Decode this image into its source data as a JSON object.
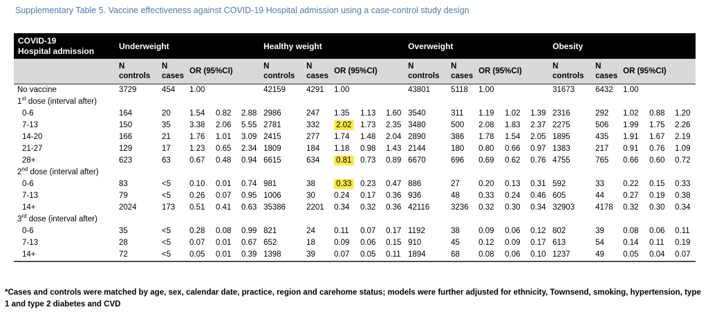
{
  "title": "Supplementary Table 5. Vaccine effectiveness against COVID-19 Hospital admission using a case-control study design",
  "colors": {
    "title_text": "#4f7cad",
    "header_bg": "#000000",
    "header_text": "#ffffff",
    "subheader_bg": "#d9d9d9",
    "highlight": "#ffe843"
  },
  "table": {
    "corner": {
      "line1": "COVID-19",
      "line2": "Hospital admission"
    },
    "groups": [
      "Underweight",
      "Healthy weight",
      "Overweight",
      "Obesity"
    ],
    "sub": {
      "n": "N",
      "controls": "controls",
      "cases": "cases",
      "or": "OR (95%CI)"
    },
    "rows": [
      {
        "label": "No vaccine",
        "indent": false,
        "cells": [
          [
            "3729",
            "454",
            "1.00",
            "",
            ""
          ],
          [
            "42159",
            "4291",
            "1.00",
            "",
            ""
          ],
          [
            "43801",
            "5118",
            "1.00",
            "",
            ""
          ],
          [
            "31673",
            "6432",
            "1.00",
            "",
            ""
          ]
        ]
      },
      {
        "section": true,
        "label": "1",
        "sup": "st",
        "rest": " dose (interval after)"
      },
      {
        "label": "0-6",
        "indent": true,
        "cells": [
          [
            "164",
            "20",
            "1.54",
            "0.82",
            "2.88"
          ],
          [
            "2986",
            "247",
            "1.35",
            "1.13",
            "1.60"
          ],
          [
            "3540",
            "311",
            "1.19",
            "1.02",
            "1.39"
          ],
          [
            "2316",
            "292",
            "1.02",
            "0.88",
            "1.20"
          ]
        ]
      },
      {
        "label": "7-13",
        "indent": true,
        "hl": [
          [
            1,
            2
          ]
        ],
        "cells": [
          [
            "150",
            "35",
            "3.38",
            "2.06",
            "5.55"
          ],
          [
            "2781",
            "332",
            "2.02",
            "1.73",
            "2.35"
          ],
          [
            "3480",
            "500",
            "2.08",
            "1.83",
            "2.37"
          ],
          [
            "2275",
            "506",
            "1.99",
            "1.75",
            "2.26"
          ]
        ]
      },
      {
        "label": "14-20",
        "indent": true,
        "cells": [
          [
            "166",
            "21",
            "1.76",
            "1.01",
            "3.09"
          ],
          [
            "2415",
            "277",
            "1.74",
            "1.48",
            "2.04"
          ],
          [
            "2890",
            "386",
            "1.78",
            "1.54",
            "2.05"
          ],
          [
            "1895",
            "435",
            "1.91",
            "1.67",
            "2.19"
          ]
        ]
      },
      {
        "label": "21-27",
        "indent": true,
        "cells": [
          [
            "129",
            "17",
            "1.23",
            "0.65",
            "2.34"
          ],
          [
            "1809",
            "184",
            "1.18",
            "0.98",
            "1.43"
          ],
          [
            "2144",
            "180",
            "0.80",
            "0.66",
            "0.97"
          ],
          [
            "1383",
            "217",
            "0.91",
            "0.76",
            "1.09"
          ]
        ]
      },
      {
        "label": "28+",
        "indent": true,
        "hl": [
          [
            1,
            2
          ]
        ],
        "cells": [
          [
            "623",
            "63",
            "0.67",
            "0.48",
            "0.94"
          ],
          [
            "6615",
            "634",
            "0.81",
            "0.73",
            "0.89"
          ],
          [
            "6670",
            "696",
            "0.69",
            "0.62",
            "0.76"
          ],
          [
            "4755",
            "765",
            "0.66",
            "0.60",
            "0.72"
          ]
        ]
      },
      {
        "section": true,
        "label": "2",
        "sup": "nd",
        "rest": " dose (interval after)"
      },
      {
        "label": "0-6",
        "indent": true,
        "hl": [
          [
            1,
            2
          ]
        ],
        "cells": [
          [
            "83",
            "<5",
            "0.10",
            "0.01",
            "0.74"
          ],
          [
            "981",
            "38",
            "0.33",
            "0.23",
            "0.47"
          ],
          [
            "886",
            "27",
            "0.20",
            "0.13",
            "0.31"
          ],
          [
            "592",
            "33",
            "0.22",
            "0.15",
            "0.33"
          ]
        ]
      },
      {
        "label": "7-13",
        "indent": true,
        "cells": [
          [
            "79",
            "<5",
            "0.26",
            "0.07",
            "0.95"
          ],
          [
            "1006",
            "30",
            "0.24",
            "0.17",
            "0.36"
          ],
          [
            "936",
            "48",
            "0.33",
            "0.24",
            "0.46"
          ],
          [
            "605",
            "44",
            "0.27",
            "0.19",
            "0.38"
          ]
        ]
      },
      {
        "label": "14+",
        "indent": true,
        "cells": [
          [
            "2024",
            "173",
            "0.51",
            "0.41",
            "0.63"
          ],
          [
            "35386",
            "2201",
            "0.34",
            "0.32",
            "0.36"
          ],
          [
            "42116",
            "3236",
            "0.32",
            "0.30",
            "0.34"
          ],
          [
            "32903",
            "4178",
            "0.32",
            "0.30",
            "0.34"
          ]
        ]
      },
      {
        "section": true,
        "label": "3",
        "sup": "rd",
        "rest": " dose (interval after)"
      },
      {
        "label": "0-6",
        "indent": true,
        "cells": [
          [
            "35",
            "<5",
            "0.28",
            "0.08",
            "0.99"
          ],
          [
            "821",
            "24",
            "0.11",
            "0.07",
            "0.17"
          ],
          [
            "1192",
            "38",
            "0.09",
            "0.06",
            "0.12"
          ],
          [
            "802",
            "39",
            "0.08",
            "0.06",
            "0.11"
          ]
        ]
      },
      {
        "label": "7-13",
        "indent": true,
        "cells": [
          [
            "28",
            "<5",
            "0.07",
            "0.01",
            "0.67"
          ],
          [
            "652",
            "18",
            "0.09",
            "0.06",
            "0.15"
          ],
          [
            "910",
            "45",
            "0.12",
            "0.09",
            "0.17"
          ],
          [
            "613",
            "54",
            "0.14",
            "0.11",
            "0.19"
          ]
        ]
      },
      {
        "label": "14+",
        "indent": true,
        "cells": [
          [
            "72",
            "<5",
            "0.05",
            "0.01",
            "0.39"
          ],
          [
            "1398",
            "39",
            "0.07",
            "0.05",
            "0.11"
          ],
          [
            "1894",
            "68",
            "0.08",
            "0.06",
            "0.10"
          ],
          [
            "1237",
            "49",
            "0.05",
            "0.04",
            "0.07"
          ]
        ]
      }
    ]
  },
  "footnote": "*Cases and controls were matched by age, sex, calendar date, practice, region and carehome status; models were further adjusted for ethnicity, Townsend, smoking, hypertension, type 1 and type 2 diabetes and CVD"
}
